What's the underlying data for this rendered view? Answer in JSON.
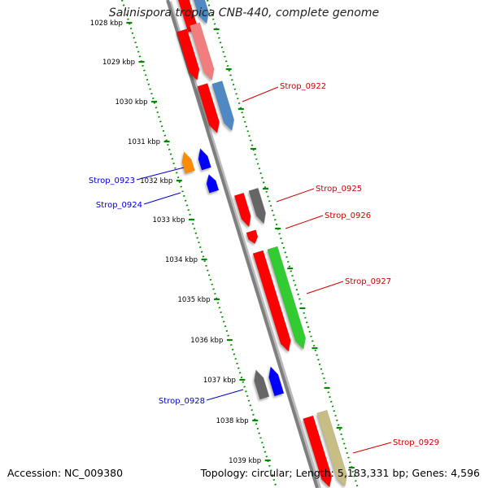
{
  "title": "Salinispora tropica CNB-440, complete genome",
  "accession": "Accession: NC_009380",
  "summary": "Topology: circular; Length: 5,183,331 bp; Genes: 4,596",
  "colors": {
    "backbone": "#888888",
    "forward_label": "#cc0000",
    "reverse_label": "#0000cc",
    "tick": "#008800",
    "red": "#ff0000",
    "pink": "#f07e7e",
    "steelblue": "#4f88c2",
    "blue": "#0000ff",
    "orange": "#ff8c00",
    "gray": "#666666",
    "green": "#33cc33",
    "khaki": "#c8bd84"
  },
  "ruler": [
    {
      "label": "1028 kbp"
    },
    {
      "label": "1029 kbp"
    },
    {
      "label": "1030 kbp"
    },
    {
      "label": "1031 kbp"
    },
    {
      "label": "1032 kbp"
    },
    {
      "label": "1033 kbp"
    },
    {
      "label": "1034 kbp"
    },
    {
      "label": "1035 kbp"
    },
    {
      "label": "1036 kbp"
    },
    {
      "label": "1037 kbp"
    },
    {
      "label": "1038 kbp"
    },
    {
      "label": "1039 kbp"
    }
  ],
  "gene_labels": [
    {
      "text": "Strop_0922",
      "strand": "forward"
    },
    {
      "text": "Strop_0923",
      "strand": "reverse"
    },
    {
      "text": "Strop_0924",
      "strand": "reverse"
    },
    {
      "text": "Strop_0925",
      "strand": "forward"
    },
    {
      "text": "Strop_0926",
      "strand": "forward"
    },
    {
      "text": "Strop_0927",
      "strand": "forward"
    },
    {
      "text": "Strop_0928",
      "strand": "reverse"
    },
    {
      "text": "Strop_0929",
      "strand": "forward"
    }
  ]
}
